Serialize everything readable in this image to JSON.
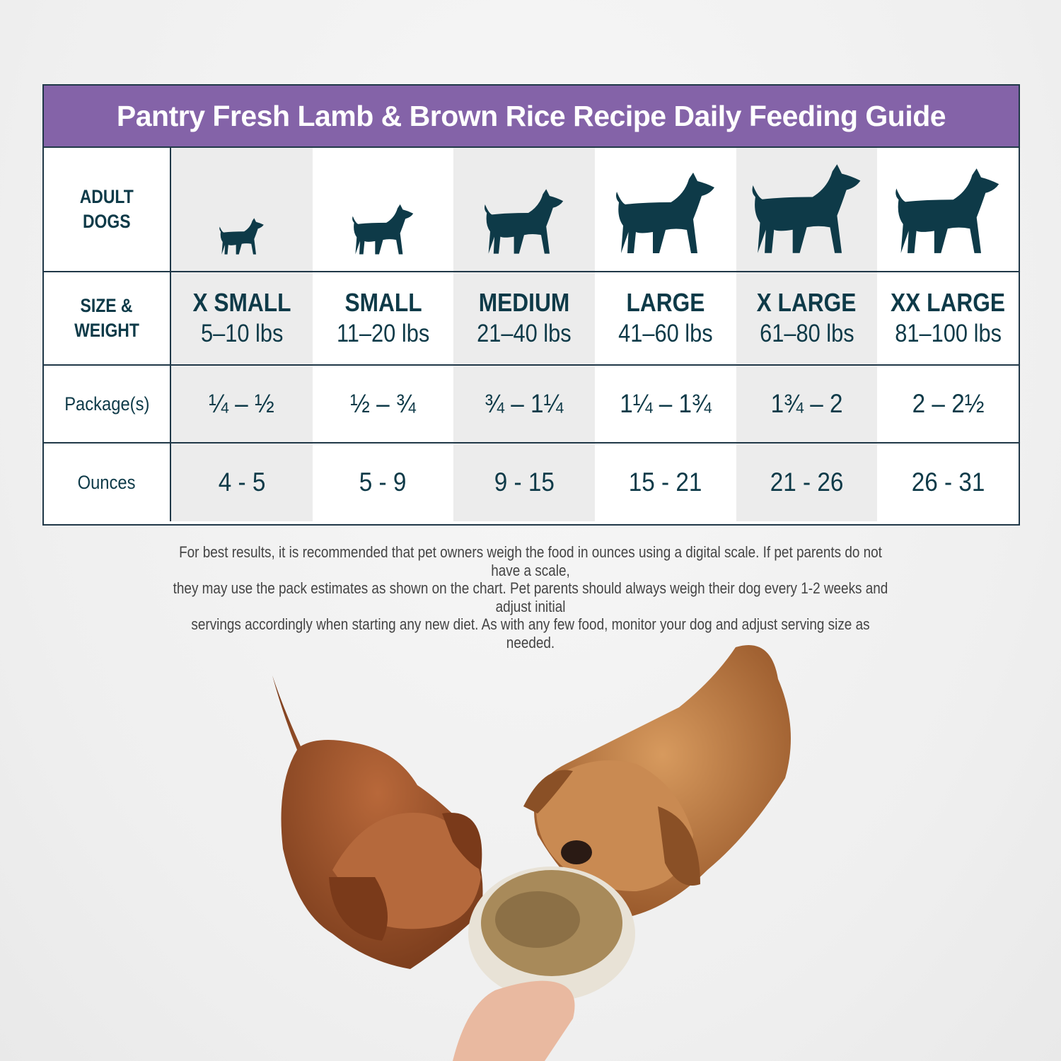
{
  "title": "Pantry Fresh Lamb & Brown Rice Recipe Daily Feeding Guide",
  "row_labels": {
    "adult_dogs": [
      "ADULT",
      "DOGS"
    ],
    "size_weight": [
      "SIZE &",
      "WEIGHT"
    ],
    "packages": "Package(s)",
    "ounces": "Ounces"
  },
  "sizes": [
    {
      "name": "X SMALL",
      "weight": "5–10 lbs",
      "packages": "¼ – ½",
      "ounces": "4 - 5",
      "icon": "chihuahua-silhouette-icon"
    },
    {
      "name": "SMALL",
      "weight": "11–20 lbs",
      "packages": "½ – ¾",
      "ounces": "5 - 9",
      "icon": "french-bulldog-silhouette-icon"
    },
    {
      "name": "MEDIUM",
      "weight": "21–40 lbs",
      "packages": "¾ – 1¼",
      "ounces": "9 - 15",
      "icon": "medium-dog-silhouette-icon"
    },
    {
      "name": "LARGE",
      "weight": "41–60 lbs",
      "packages": "1¼ – 1¾",
      "ounces": "15 - 21",
      "icon": "retriever-silhouette-icon"
    },
    {
      "name": "X LARGE",
      "weight": "61–80 lbs",
      "packages": "1¾ – 2",
      "ounces": "21 - 26",
      "icon": "shepherd-silhouette-icon"
    },
    {
      "name": "XX LARGE",
      "weight": "81–100 lbs",
      "packages": "2 – 2½",
      "ounces": "26 - 31",
      "icon": "great-dane-silhouette-icon"
    }
  ],
  "note_lines": [
    "For best results, it is recommended that pet owners weigh the food in ounces using a digital scale. If pet parents do not have a scale,",
    "they may use the pack estimates as shown on the chart. Pet parents should always weigh their dog every 1-2 weeks and adjust initial",
    "servings accordingly when starting any new diet. As with any few food, monitor your dog and adjust serving size as needed."
  ],
  "colors": {
    "header": "#8463a8",
    "text": "#0e3a48",
    "alt_column": "#ececec"
  }
}
